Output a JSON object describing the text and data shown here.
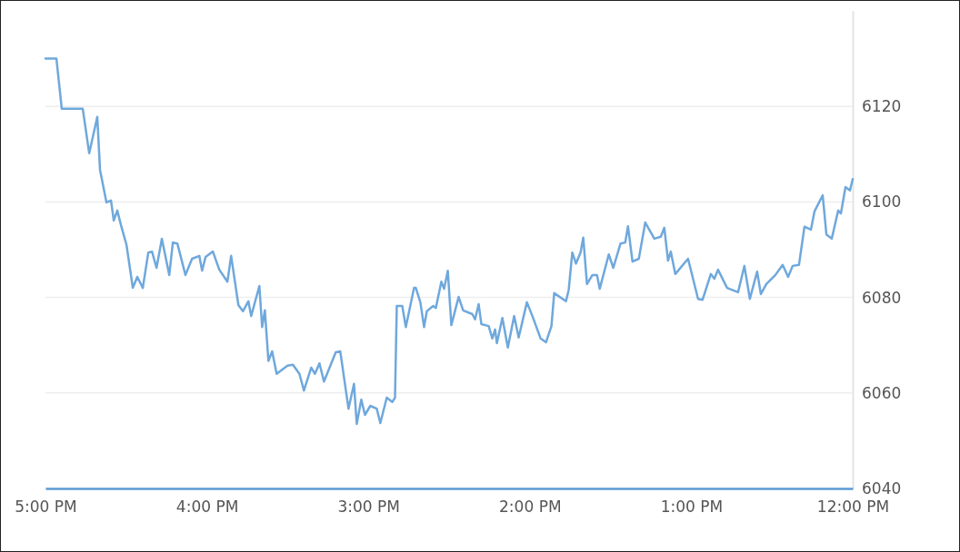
{
  "chart_data": {
    "type": "line",
    "x": [
      17,
      16.932,
      16.899,
      16.769,
      16.729,
      16.679,
      16.662,
      16.622,
      16.594,
      16.577,
      16.555,
      16.532,
      16.498,
      16.459,
      16.431,
      16.397,
      16.363,
      16.34,
      16.312,
      16.279,
      16.233,
      16.211,
      16.183,
      16.133,
      16.092,
      16.047,
      16.03,
      16.008,
      15.963,
      15.923,
      15.873,
      15.85,
      15.805,
      15.777,
      15.743,
      15.726,
      15.675,
      15.658,
      15.641,
      15.619,
      15.596,
      15.568,
      15.501,
      15.467,
      15.427,
      15.399,
      15.354,
      15.331,
      15.303,
      15.275,
      15.202,
      15.174,
      15.123,
      15.089,
      15.072,
      15.044,
      15.021,
      14.988,
      14.948,
      14.926,
      14.886,
      14.852,
      14.835,
      14.824,
      14.79,
      14.768,
      14.717,
      14.706,
      14.678,
      14.655,
      14.638,
      14.599,
      14.582,
      14.548,
      14.531,
      14.508,
      14.486,
      14.441,
      14.413,
      14.356,
      14.339,
      14.317,
      14.3,
      14.255,
      14.232,
      14.215,
      14.204,
      14.17,
      14.136,
      14.097,
      14.069,
      14.018,
      13.984,
      13.933,
      13.9,
      13.866,
      13.849,
      13.776,
      13.759,
      13.737,
      13.714,
      13.686,
      13.669,
      13.646,
      13.612,
      13.584,
      13.567,
      13.511,
      13.483,
      13.438,
      13.409,
      13.392,
      13.364,
      13.325,
      13.285,
      13.229,
      13.189,
      13.167,
      13.144,
      13.127,
      13.099,
      13.02,
      12.958,
      12.93,
      12.879,
      12.857,
      12.834,
      12.778,
      12.71,
      12.671,
      12.637,
      12.592,
      12.569,
      12.535,
      12.479,
      12.434,
      12.4,
      12.372,
      12.333,
      12.299,
      12.259,
      12.237,
      12.186,
      12.163,
      12.13,
      12.09,
      12.073,
      12.045,
      12.017,
      12
    ],
    "series": [
      {
        "color": "#6fa8dc",
        "values": [
          6130,
          6130,
          6119.5,
          6119.5,
          6110.2,
          6117.8,
          6106.7,
          6099.9,
          6100.3,
          6096.1,
          6098.2,
          6095.1,
          6091,
          6082,
          6084.3,
          6082,
          6089.4,
          6089.6,
          6086.2,
          6092.3,
          6084.7,
          6091.5,
          6091.3,
          6084.7,
          6088.1,
          6088.7,
          6085.6,
          6088.5,
          6089.6,
          6085.8,
          6083.3,
          6088.7,
          6078.4,
          6077.1,
          6079.2,
          6076.1,
          6082.4,
          6073.8,
          6077.3,
          6066.7,
          6068.7,
          6064,
          6065.7,
          6065.9,
          6064,
          6060.5,
          6065.3,
          6064,
          6066.2,
          6062.4,
          6068.5,
          6068.7,
          6056.7,
          6061.9,
          6053.5,
          6058.6,
          6055.4,
          6057.3,
          6056.7,
          6053.7,
          6059,
          6058.1,
          6059,
          6078.2,
          6078.2,
          6073.8,
          6082,
          6082,
          6079,
          6073.8,
          6077.1,
          6078.2,
          6077.8,
          6083.3,
          6081.8,
          6085.6,
          6074.2,
          6080.1,
          6077.3,
          6076.5,
          6075.4,
          6078.6,
          6074.4,
          6074,
          6071.4,
          6073.3,
          6070.4,
          6075.7,
          6069.5,
          6076.1,
          6071.6,
          6079,
          6076.1,
          6071.4,
          6070.6,
          6074,
          6080.9,
          6079.2,
          6081.6,
          6089.4,
          6087.1,
          6089.4,
          6092.5,
          6082.8,
          6084.7,
          6084.7,
          6081.8,
          6089,
          6086.2,
          6091.3,
          6091.5,
          6094.9,
          6087.5,
          6088.1,
          6095.7,
          6092.3,
          6092.7,
          6094.6,
          6087.7,
          6089.6,
          6084.9,
          6088.1,
          6079.7,
          6079.5,
          6084.9,
          6083.9,
          6085.8,
          6082,
          6081.1,
          6086.6,
          6079.7,
          6085.4,
          6080.7,
          6082.8,
          6084.7,
          6086.8,
          6084.3,
          6086.6,
          6086.8,
          6094.8,
          6094.2,
          6098,
          6101.4,
          6093.2,
          6092.3,
          6098.2,
          6097.6,
          6103.1,
          6102.4,
          6104.8
        ]
      }
    ],
    "xlim": [
      17,
      12
    ],
    "ylim": [
      6040,
      6140
    ],
    "xticks": [
      {
        "value": 17,
        "label": "5:00 PM"
      },
      {
        "value": 16,
        "label": "4:00 PM"
      },
      {
        "value": 15,
        "label": "3:00 PM"
      },
      {
        "value": 14,
        "label": "2:00 PM"
      },
      {
        "value": 13,
        "label": "1:00 PM"
      },
      {
        "value": 12,
        "label": "12:00 PM"
      }
    ],
    "yticks": [
      6040,
      6060,
      6080,
      6100,
      6120
    ],
    "grid": "y"
  }
}
